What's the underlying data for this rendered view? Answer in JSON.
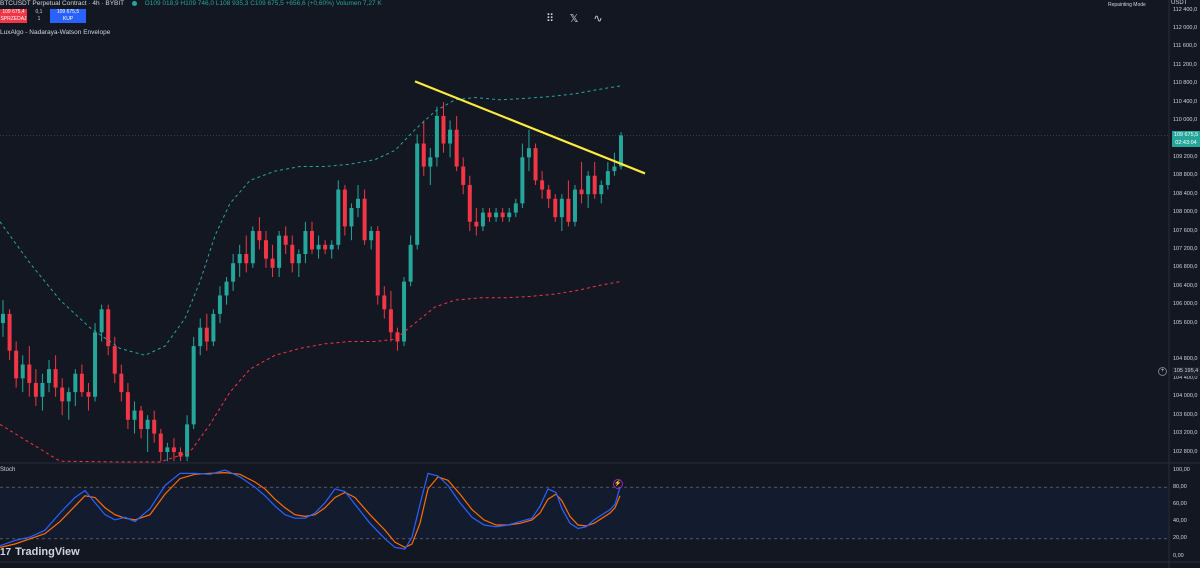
{
  "header": {
    "symbol": "BTCUSDT Perpetual Contract · 4h · BYBIT",
    "ohlc": "O109 018,9  H109 746,0  L108 935,3  C109 675,5  +656,6 (+0,60%)  Volumen 7,27 K"
  },
  "trade": {
    "sell_price": "109 675,4",
    "sell_label": "SPRZEDAJ",
    "spread": "0,1",
    "quantity": "1",
    "buy_price": "109 675,5",
    "buy_label": "KUP"
  },
  "indicator": {
    "name": "LuxAlgo - Nadaraya-Watson Envelope"
  },
  "toolbar": {
    "icons": [
      "drag-handle-icon",
      "x-close-icon",
      "wave-icon"
    ],
    "x_glyph": "𝕏",
    "wave_glyph": "∿",
    "drag_glyph": "⠿"
  },
  "top_right": {
    "repainting_label": "Repainting Mode",
    "currency": "USDT"
  },
  "price_axis": {
    "labels": [
      "112 400,0",
      "112 000,0",
      "111 600,0",
      "111 200,0",
      "110 800,0",
      "110 400,0",
      "110 000,0",
      "109 200,0",
      "108 800,0",
      "108 400,0",
      "108 000,0",
      "107 600,0",
      "107 200,0",
      "106 800,0",
      "106 400,0",
      "106 000,0",
      "105 600,0",
      "104 800,0",
      "104 400,0",
      "104 000,0",
      "103 600,0",
      "103 200,0",
      "102 800,0"
    ],
    "current_price": "109 675,5",
    "countdown": "02:43:04",
    "marked_price": "105 195,4"
  },
  "stoch": {
    "label": "Stoch",
    "axis_labels": [
      "100,00",
      "80,00",
      "60,00",
      "40,00",
      "20,00",
      "0,00"
    ]
  },
  "branding": {
    "logo_text": "TradingView",
    "logo_mark": "17"
  },
  "chart_data": {
    "type": "candlestick",
    "title": "",
    "ylim": [
      102600,
      112600
    ],
    "grid": false,
    "candles": [
      [
        105600,
        106100,
        105300,
        105800
      ],
      [
        105800,
        105900,
        104800,
        105000
      ],
      [
        105000,
        105200,
        104200,
        104400
      ],
      [
        104400,
        104900,
        104100,
        104700
      ],
      [
        104700,
        105100,
        104000,
        104300
      ],
      [
        104300,
        104600,
        103800,
        104000
      ],
      [
        104000,
        104500,
        103700,
        104300
      ],
      [
        104300,
        104800,
        104100,
        104600
      ],
      [
        104600,
        104900,
        104000,
        104200
      ],
      [
        104200,
        104400,
        103600,
        103900
      ],
      [
        103900,
        104200,
        103500,
        104100
      ],
      [
        104100,
        104600,
        103800,
        104500
      ],
      [
        104500,
        104700,
        104000,
        104100
      ],
      [
        104100,
        104300,
        103700,
        104000
      ],
      [
        104000,
        105600,
        103900,
        105400
      ],
      [
        105400,
        106000,
        105200,
        105900
      ],
      [
        105900,
        106000,
        104900,
        105100
      ],
      [
        105100,
        105300,
        104300,
        104500
      ],
      [
        104500,
        104700,
        103900,
        104100
      ],
      [
        104100,
        104300,
        103300,
        103500
      ],
      [
        103500,
        103900,
        103200,
        103700
      ],
      [
        103700,
        103800,
        103100,
        103300
      ],
      [
        103300,
        103600,
        102800,
        103500
      ],
      [
        103500,
        103700,
        103000,
        103200
      ],
      [
        103200,
        103300,
        102600,
        102800
      ],
      [
        102800,
        103000,
        102600,
        102900
      ],
      [
        102900,
        103100,
        102600,
        102800
      ],
      [
        102800,
        102900,
        102600,
        102700
      ],
      [
        102700,
        103600,
        102600,
        103400
      ],
      [
        103400,
        105300,
        103300,
        105100
      ],
      [
        105100,
        105700,
        104900,
        105500
      ],
      [
        105500,
        105800,
        105000,
        105200
      ],
      [
        105200,
        105900,
        105100,
        105800
      ],
      [
        105800,
        106400,
        105600,
        106200
      ],
      [
        106200,
        106600,
        106000,
        106500
      ],
      [
        106500,
        107100,
        106300,
        106900
      ],
      [
        106900,
        107300,
        106600,
        107100
      ],
      [
        107100,
        107500,
        106700,
        106900
      ],
      [
        106900,
        107700,
        106800,
        107600
      ],
      [
        107600,
        107900,
        107200,
        107400
      ],
      [
        107400,
        107600,
        106800,
        107000
      ],
      [
        107000,
        107300,
        106600,
        106800
      ],
      [
        106800,
        107600,
        106600,
        107500
      ],
      [
        107500,
        107700,
        107100,
        107300
      ],
      [
        107300,
        107500,
        106700,
        106900
      ],
      [
        106900,
        107200,
        106600,
        107100
      ],
      [
        107100,
        107800,
        106900,
        107600
      ],
      [
        107600,
        107800,
        107100,
        107200
      ],
      [
        107200,
        107500,
        107000,
        107300
      ],
      [
        107300,
        107400,
        107100,
        107200
      ],
      [
        107200,
        107400,
        107000,
        107300
      ],
      [
        107300,
        108700,
        107200,
        108500
      ],
      [
        108500,
        108600,
        107500,
        107700
      ],
      [
        107700,
        108200,
        107400,
        108100
      ],
      [
        108100,
        108600,
        107900,
        108300
      ],
      [
        108300,
        108500,
        107300,
        107400
      ],
      [
        107400,
        107700,
        107200,
        107600
      ],
      [
        107600,
        107700,
        106000,
        106200
      ],
      [
        106200,
        106400,
        105700,
        105900
      ],
      [
        105900,
        106300,
        105200,
        105400
      ],
      [
        105400,
        105500,
        105000,
        105200
      ],
      [
        105200,
        106600,
        105100,
        106500
      ],
      [
        106500,
        107500,
        106400,
        107300
      ],
      [
        107300,
        109700,
        107200,
        109500
      ],
      [
        109500,
        110000,
        108800,
        109000
      ],
      [
        109000,
        109400,
        108600,
        109200
      ],
      [
        109200,
        110300,
        109000,
        110100
      ],
      [
        110100,
        110400,
        109300,
        109500
      ],
      [
        109500,
        110000,
        109200,
        109800
      ],
      [
        109800,
        110100,
        108900,
        109000
      ],
      [
        109000,
        109200,
        108400,
        108600
      ],
      [
        108600,
        108800,
        107600,
        107800
      ],
      [
        107800,
        108100,
        107500,
        107700
      ],
      [
        107700,
        108100,
        107600,
        108000
      ],
      [
        108000,
        108100,
        107800,
        107900
      ],
      [
        107900,
        108100,
        107800,
        108000
      ],
      [
        108000,
        108100,
        107800,
        107900
      ],
      [
        107900,
        108100,
        107800,
        108000
      ],
      [
        108000,
        108300,
        107900,
        108200
      ],
      [
        108200,
        109500,
        108100,
        109200
      ],
      [
        109200,
        109800,
        108900,
        109400
      ],
      [
        109400,
        109500,
        108600,
        108700
      ],
      [
        108700,
        108900,
        108300,
        108500
      ],
      [
        108500,
        108600,
        108100,
        108300
      ],
      [
        108300,
        108400,
        107800,
        107900
      ],
      [
        107900,
        108400,
        107600,
        108300
      ],
      [
        108300,
        108700,
        107700,
        107800
      ],
      [
        107800,
        108600,
        107700,
        108500
      ],
      [
        108500,
        109100,
        108200,
        108400
      ],
      [
        108400,
        108900,
        108100,
        108800
      ],
      [
        108800,
        109100,
        108300,
        108400
      ],
      [
        108400,
        108700,
        108200,
        108600
      ],
      [
        108600,
        109100,
        108500,
        108900
      ],
      [
        108900,
        109300,
        108800,
        109000
      ],
      [
        109000,
        109746,
        108935,
        109675.5
      ]
    ],
    "envelope_upper": [
      [
        0,
        107800
      ],
      [
        30,
        106900
      ],
      [
        60,
        106100
      ],
      [
        90,
        105500
      ],
      [
        120,
        105050
      ],
      [
        145,
        104900
      ],
      [
        165,
        105100
      ],
      [
        185,
        105700
      ],
      [
        200,
        106500
      ],
      [
        215,
        107500
      ],
      [
        230,
        108200
      ],
      [
        250,
        108700
      ],
      [
        275,
        108900
      ],
      [
        300,
        109000
      ],
      [
        325,
        109000
      ],
      [
        350,
        109050
      ],
      [
        375,
        109150
      ],
      [
        395,
        109350
      ],
      [
        415,
        109800
      ],
      [
        435,
        110200
      ],
      [
        455,
        110450
      ],
      [
        475,
        110500
      ],
      [
        500,
        110450
      ],
      [
        525,
        110480
      ],
      [
        550,
        110520
      ],
      [
        575,
        110580
      ],
      [
        600,
        110680
      ],
      [
        620,
        110750
      ]
    ],
    "envelope_lower": [
      [
        0,
        103400
      ],
      [
        30,
        103000
      ],
      [
        60,
        102600
      ],
      [
        120,
        102500
      ],
      [
        160,
        102500
      ],
      [
        190,
        102800
      ],
      [
        210,
        103400
      ],
      [
        230,
        104100
      ],
      [
        250,
        104600
      ],
      [
        275,
        104900
      ],
      [
        300,
        105050
      ],
      [
        325,
        105150
      ],
      [
        350,
        105200
      ],
      [
        375,
        105200
      ],
      [
        395,
        105250
      ],
      [
        415,
        105600
      ],
      [
        435,
        105950
      ],
      [
        455,
        106100
      ],
      [
        480,
        106150
      ],
      [
        505,
        106150
      ],
      [
        530,
        106180
      ],
      [
        555,
        106230
      ],
      [
        580,
        106320
      ],
      [
        600,
        106420
      ],
      [
        620,
        106500
      ]
    ],
    "trendline": [
      [
        415,
        110850
      ],
      [
        645,
        108850
      ]
    ],
    "stoch_k": [
      [
        0,
        12
      ],
      [
        15,
        18
      ],
      [
        30,
        22
      ],
      [
        45,
        30
      ],
      [
        60,
        50
      ],
      [
        75,
        68
      ],
      [
        85,
        76
      ],
      [
        95,
        62
      ],
      [
        105,
        48
      ],
      [
        115,
        42
      ],
      [
        125,
        45
      ],
      [
        135,
        40
      ],
      [
        150,
        55
      ],
      [
        165,
        82
      ],
      [
        180,
        96
      ],
      [
        195,
        96
      ],
      [
        210,
        95
      ],
      [
        225,
        100
      ],
      [
        240,
        92
      ],
      [
        255,
        80
      ],
      [
        265,
        70
      ],
      [
        275,
        58
      ],
      [
        285,
        48
      ],
      [
        295,
        44
      ],
      [
        305,
        44
      ],
      [
        315,
        50
      ],
      [
        325,
        62
      ],
      [
        335,
        78
      ],
      [
        345,
        75
      ],
      [
        355,
        60
      ],
      [
        370,
        38
      ],
      [
        385,
        20
      ],
      [
        395,
        10
      ],
      [
        405,
        8
      ],
      [
        412,
        22
      ],
      [
        420,
        60
      ],
      [
        428,
        96
      ],
      [
        438,
        93
      ],
      [
        448,
        82
      ],
      [
        460,
        62
      ],
      [
        472,
        45
      ],
      [
        484,
        36
      ],
      [
        496,
        34
      ],
      [
        508,
        36
      ],
      [
        520,
        40
      ],
      [
        532,
        44
      ],
      [
        540,
        58
      ],
      [
        548,
        78
      ],
      [
        556,
        74
      ],
      [
        562,
        55
      ],
      [
        570,
        38
      ],
      [
        578,
        32
      ],
      [
        586,
        34
      ],
      [
        594,
        42
      ],
      [
        602,
        48
      ],
      [
        610,
        54
      ],
      [
        615,
        60
      ],
      [
        620,
        80
      ]
    ],
    "stoch_d": [
      [
        0,
        10
      ],
      [
        15,
        14
      ],
      [
        30,
        20
      ],
      [
        45,
        26
      ],
      [
        60,
        40
      ],
      [
        75,
        58
      ],
      [
        85,
        70
      ],
      [
        95,
        68
      ],
      [
        105,
        56
      ],
      [
        115,
        48
      ],
      [
        125,
        44
      ],
      [
        135,
        42
      ],
      [
        150,
        48
      ],
      [
        165,
        72
      ],
      [
        180,
        90
      ],
      [
        195,
        95
      ],
      [
        210,
        96
      ],
      [
        225,
        97
      ],
      [
        240,
        95
      ],
      [
        255,
        86
      ],
      [
        265,
        78
      ],
      [
        275,
        66
      ],
      [
        285,
        56
      ],
      [
        295,
        48
      ],
      [
        305,
        46
      ],
      [
        315,
        48
      ],
      [
        325,
        56
      ],
      [
        335,
        68
      ],
      [
        345,
        74
      ],
      [
        355,
        68
      ],
      [
        370,
        48
      ],
      [
        385,
        30
      ],
      [
        395,
        16
      ],
      [
        405,
        10
      ],
      [
        412,
        14
      ],
      [
        420,
        38
      ],
      [
        428,
        78
      ],
      [
        438,
        92
      ],
      [
        448,
        88
      ],
      [
        460,
        72
      ],
      [
        472,
        54
      ],
      [
        484,
        42
      ],
      [
        496,
        36
      ],
      [
        508,
        36
      ],
      [
        520,
        38
      ],
      [
        532,
        42
      ],
      [
        540,
        50
      ],
      [
        548,
        66
      ],
      [
        556,
        72
      ],
      [
        562,
        64
      ],
      [
        570,
        46
      ],
      [
        578,
        36
      ],
      [
        586,
        35
      ],
      [
        594,
        38
      ],
      [
        602,
        44
      ],
      [
        610,
        50
      ],
      [
        615,
        56
      ],
      [
        620,
        70
      ]
    ],
    "stoch_levels": [
      80,
      20
    ],
    "colors": {
      "bull": "#26a69a",
      "bear": "#f23645",
      "upper": "#26a69a",
      "lower": "#f23645",
      "trend": "#ffeb3b",
      "stoch_k": "#2962ff",
      "stoch_d": "#ff6d00"
    }
  }
}
